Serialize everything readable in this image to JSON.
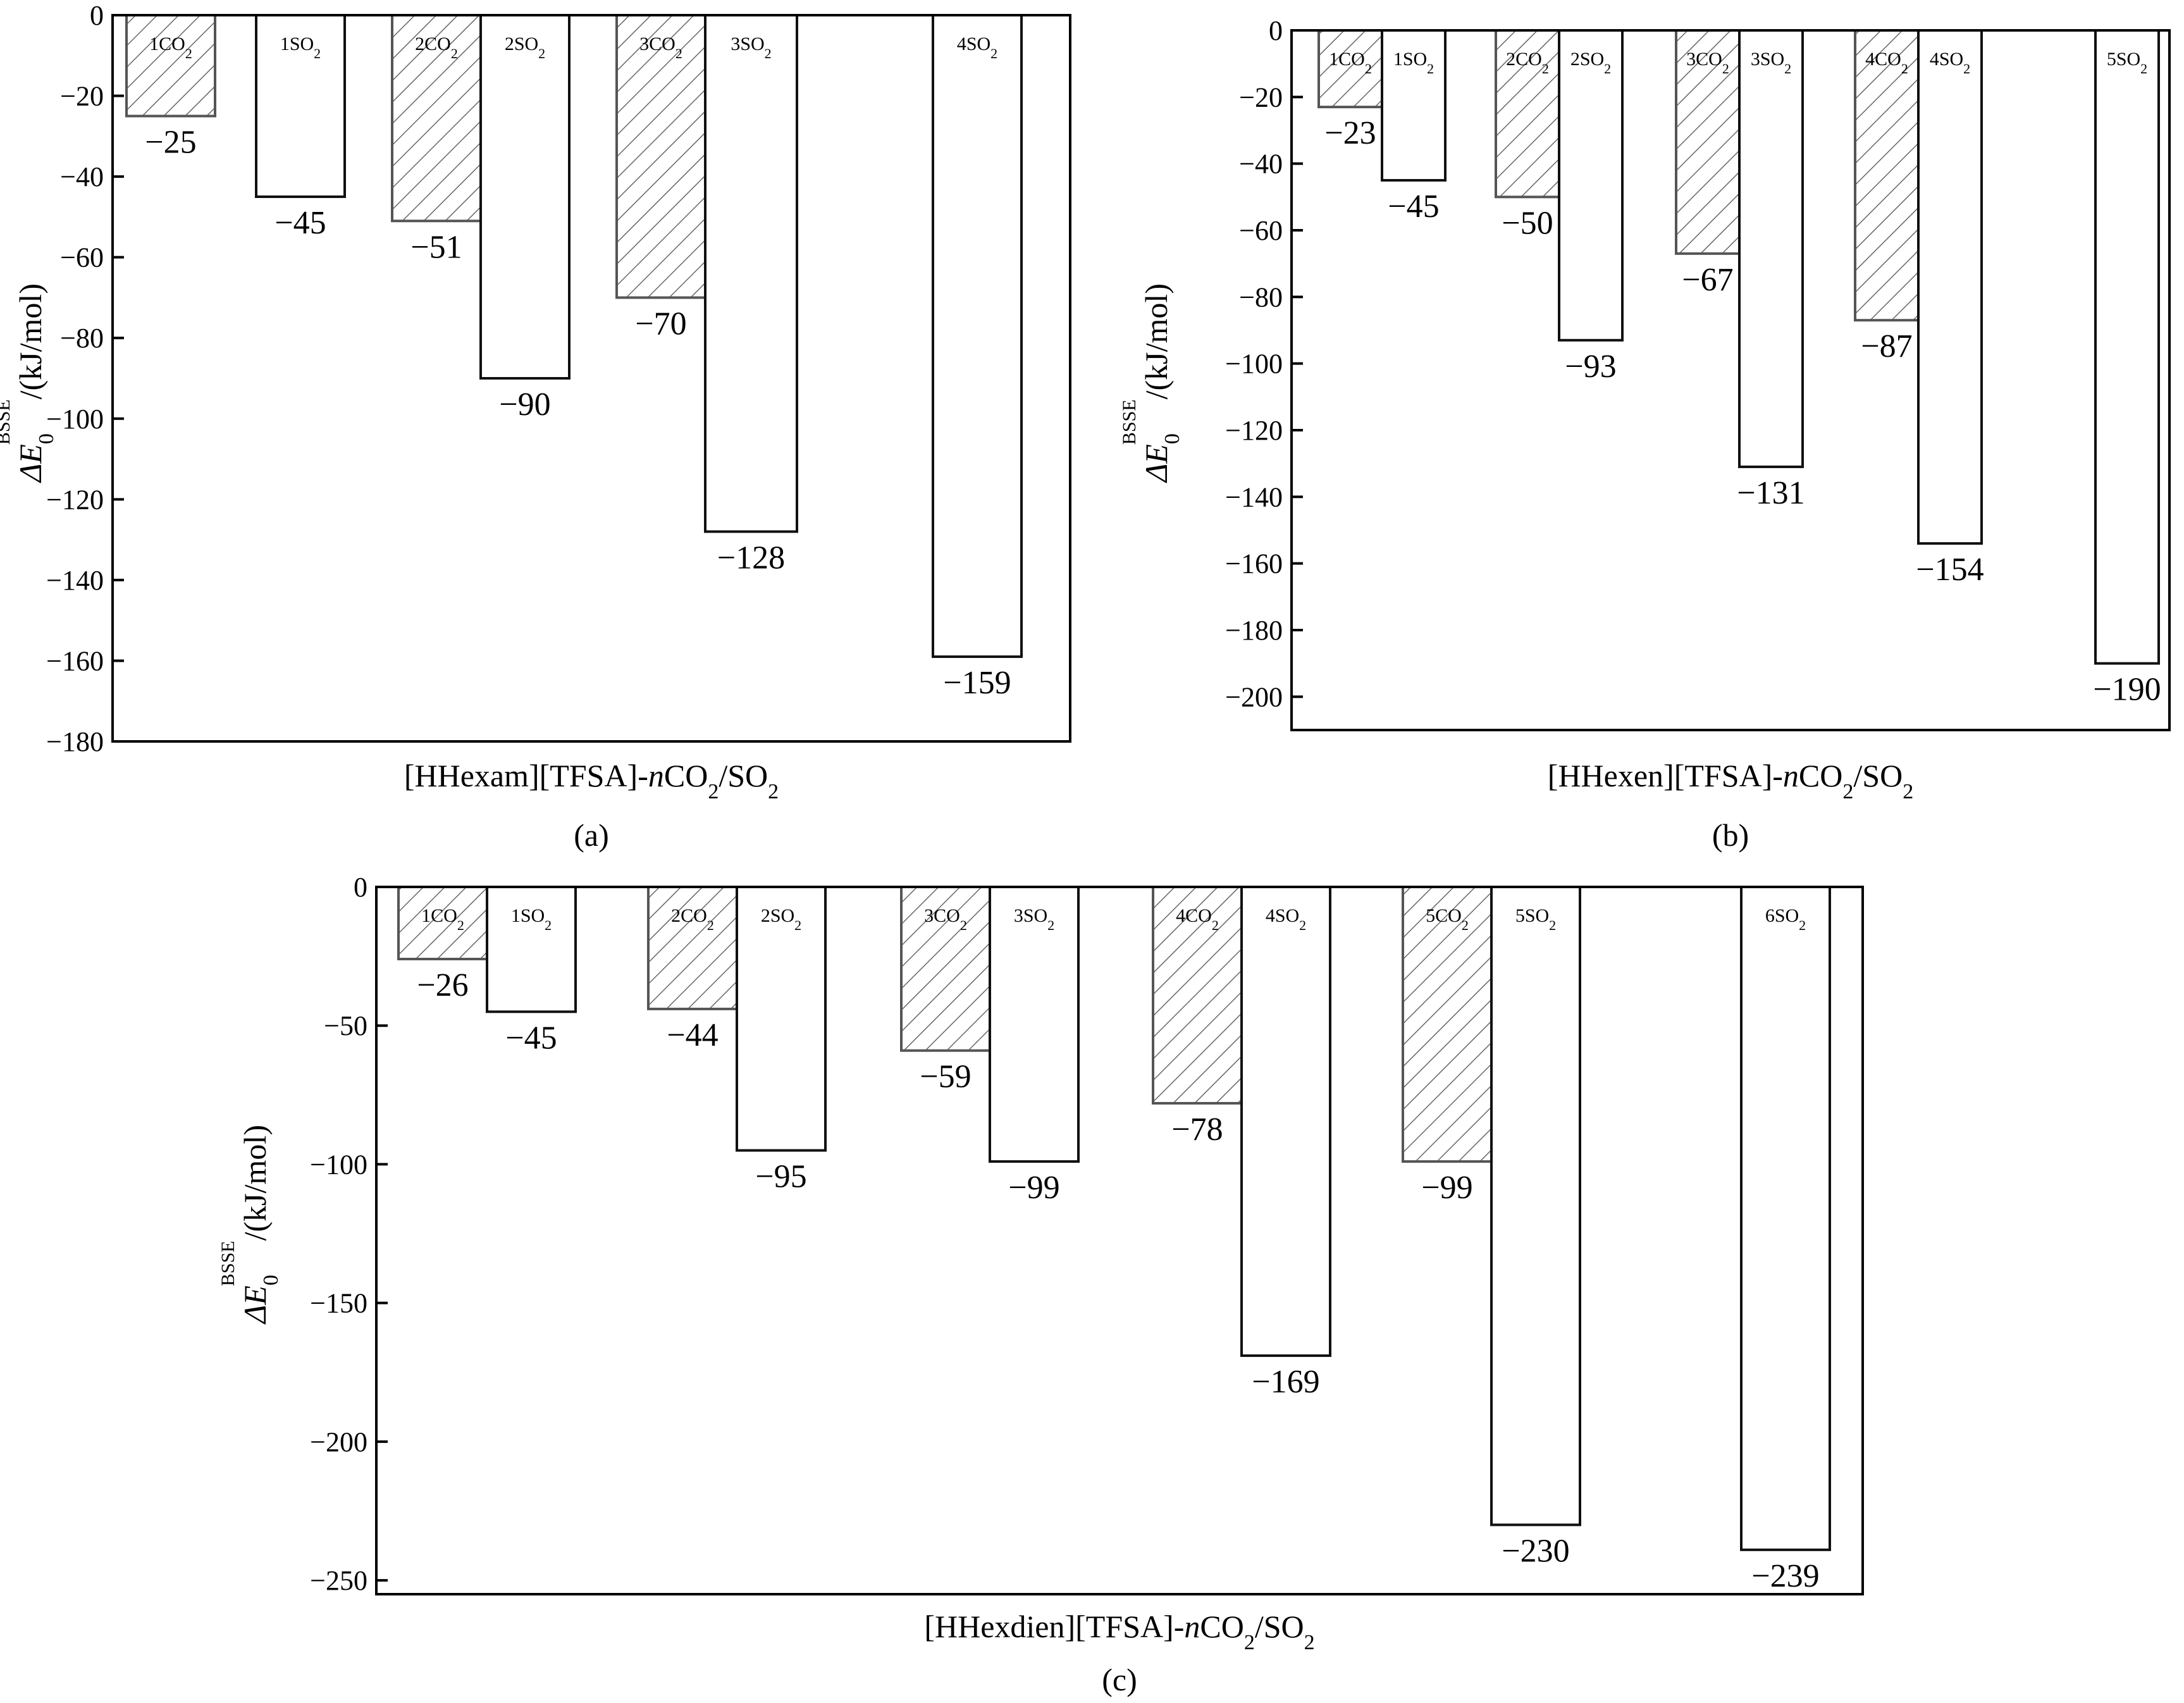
{
  "colors": {
    "axis": "#000000",
    "bar_outline_co2": "#555555",
    "bar_outline_so2": "#111111",
    "hatch": "#666666",
    "background": "#ffffff"
  },
  "chart_data": [
    {
      "type": "bar",
      "panel_label": "(a)",
      "xlabel": {
        "pre": "[HHexam][TFSA]-",
        "ital": "n",
        "post": "CO",
        "sub": "2",
        "post2": "/SO",
        "sub2": "2"
      },
      "ylabel": {
        "pre": "ΔE",
        "sub": "0",
        "sup": "BSSE",
        "post": "/(kJ/mol)"
      },
      "ylim": [
        -180,
        0
      ],
      "yticks": [
        0,
        -20,
        -40,
        -60,
        -80,
        -100,
        -120,
        -140,
        -160,
        -180
      ],
      "tick_text": [
        "0",
        "−20",
        "−40",
        "−60",
        "−80",
        "−100",
        "−120",
        "−140",
        "−160",
        "−180"
      ],
      "bars": [
        {
          "n": "1",
          "gas": "CO",
          "sub": "2",
          "kind": "co2",
          "value": -25,
          "text": "−25"
        },
        {
          "n": "1",
          "gas": "SO",
          "sub": "2",
          "kind": "so2",
          "value": -45,
          "text": "−45"
        },
        {
          "n": "2",
          "gas": "CO",
          "sub": "2",
          "kind": "co2",
          "value": -51,
          "text": "−51"
        },
        {
          "n": "2",
          "gas": "SO",
          "sub": "2",
          "kind": "so2",
          "value": -90,
          "text": "−90"
        },
        {
          "n": "3",
          "gas": "CO",
          "sub": "2",
          "kind": "co2",
          "value": -70,
          "text": "−70"
        },
        {
          "n": "3",
          "gas": "SO",
          "sub": "2",
          "kind": "so2",
          "value": -128,
          "text": "−128"
        },
        {
          "n": "4",
          "gas": "SO",
          "sub": "2",
          "kind": "so2",
          "value": -159,
          "text": "−159"
        }
      ]
    },
    {
      "type": "bar",
      "panel_label": "(b)",
      "xlabel": {
        "pre": "[HHexen][TFSA]-",
        "ital": "n",
        "post": "CO",
        "sub": "2",
        "post2": "/SO",
        "sub2": "2"
      },
      "ylabel": {
        "pre": "ΔE",
        "sub": "0",
        "sup": "BSSE",
        "post": "/(kJ/mol)"
      },
      "ylim": [
        -210,
        0
      ],
      "yticks": [
        0,
        -20,
        -40,
        -60,
        -80,
        -100,
        -120,
        -140,
        -160,
        -180,
        -200
      ],
      "tick_text": [
        "0",
        "−20",
        "−40",
        "−60",
        "−80",
        "−100",
        "−120",
        "−140",
        "−160",
        "−180",
        "−200"
      ],
      "bars": [
        {
          "n": "1",
          "gas": "CO",
          "sub": "2",
          "kind": "co2",
          "value": -23,
          "text": "−23"
        },
        {
          "n": "1",
          "gas": "SO",
          "sub": "2",
          "kind": "so2",
          "value": -45,
          "text": "−45"
        },
        {
          "n": "2",
          "gas": "CO",
          "sub": "2",
          "kind": "co2",
          "value": -50,
          "text": "−50"
        },
        {
          "n": "2",
          "gas": "SO",
          "sub": "2",
          "kind": "so2",
          "value": -93,
          "text": "−93"
        },
        {
          "n": "3",
          "gas": "CO",
          "sub": "2",
          "kind": "co2",
          "value": -67,
          "text": "−67"
        },
        {
          "n": "3",
          "gas": "SO",
          "sub": "2",
          "kind": "so2",
          "value": -131,
          "text": "−131"
        },
        {
          "n": "4",
          "gas": "CO",
          "sub": "2",
          "kind": "co2",
          "value": -87,
          "text": "−87"
        },
        {
          "n": "4",
          "gas": "SO",
          "sub": "2",
          "kind": "so2",
          "value": -154,
          "text": "−154"
        },
        {
          "n": "5",
          "gas": "SO",
          "sub": "2",
          "kind": "so2",
          "value": -190,
          "text": "−190"
        }
      ]
    },
    {
      "type": "bar",
      "panel_label": "(c)",
      "xlabel": {
        "pre": "[HHexdien][TFSA]-",
        "ital": "n",
        "post": "CO",
        "sub": "2",
        "post2": "/SO",
        "sub2": "2"
      },
      "ylabel": {
        "pre": "ΔE",
        "sub": "0",
        "sup": "BSSE",
        "post": "/(kJ/mol)"
      },
      "ylim": [
        -255,
        0
      ],
      "yticks": [
        0,
        -50,
        -100,
        -150,
        -200,
        -250
      ],
      "tick_text": [
        "0",
        "−50",
        "−100",
        "−150",
        "−200",
        "−250"
      ],
      "bars": [
        {
          "n": "1",
          "gas": "CO",
          "sub": "2",
          "kind": "co2",
          "value": -26,
          "text": "−26"
        },
        {
          "n": "1",
          "gas": "SO",
          "sub": "2",
          "kind": "so2",
          "value": -45,
          "text": "−45"
        },
        {
          "n": "2",
          "gas": "CO",
          "sub": "2",
          "kind": "co2",
          "value": -44,
          "text": "−44"
        },
        {
          "n": "2",
          "gas": "SO",
          "sub": "2",
          "kind": "so2",
          "value": -95,
          "text": "−95"
        },
        {
          "n": "3",
          "gas": "CO",
          "sub": "2",
          "kind": "co2",
          "value": -59,
          "text": "−59"
        },
        {
          "n": "3",
          "gas": "SO",
          "sub": "2",
          "kind": "so2",
          "value": -99,
          "text": "−99"
        },
        {
          "n": "4",
          "gas": "CO",
          "sub": "2",
          "kind": "co2",
          "value": -78,
          "text": "−78"
        },
        {
          "n": "4",
          "gas": "SO",
          "sub": "2",
          "kind": "so2",
          "value": -169,
          "text": "−169"
        },
        {
          "n": "5",
          "gas": "CO",
          "sub": "2",
          "kind": "co2",
          "value": -99,
          "text": "−99"
        },
        {
          "n": "5",
          "gas": "SO",
          "sub": "2",
          "kind": "so2",
          "value": -230,
          "text": "−230"
        },
        {
          "n": "6",
          "gas": "SO",
          "sub": "2",
          "kind": "so2",
          "value": -239,
          "text": "−239"
        }
      ]
    }
  ]
}
